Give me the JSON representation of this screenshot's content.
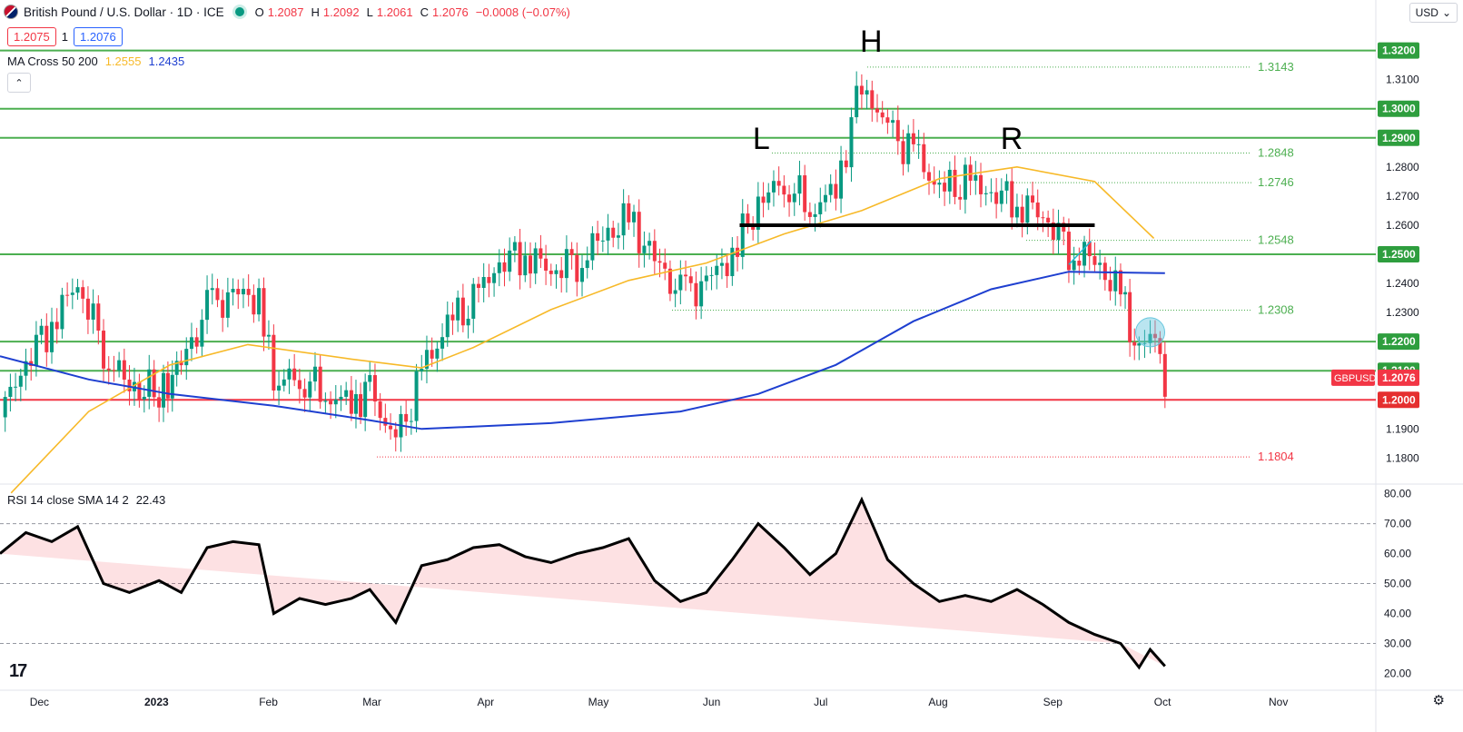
{
  "header": {
    "title": "British Pound / U.S. Dollar · 1D · ICE",
    "ohlc": [
      {
        "k": "O",
        "v": "1.2087"
      },
      {
        "k": "H",
        "v": "1.2092"
      },
      {
        "k": "L",
        "v": "1.2061"
      },
      {
        "k": "C",
        "v": "1.2076"
      },
      {
        "k": "",
        "v": "−0.0008 (−0.07%)"
      }
    ]
  },
  "quote": {
    "bid": "1.2075",
    "spread": "1",
    "ask": "1.2076"
  },
  "ma_legend": {
    "label": "MA Cross 50 200",
    "ma50": "1.2555",
    "ma200": "1.2435"
  },
  "currency_button": {
    "label": "USD",
    "icon": "chevron-down-icon"
  },
  "rsi_legend": {
    "label": "RSI 14 close SMA 14 2",
    "value": "22.43"
  },
  "colors": {
    "up": "#089981",
    "down": "#f23645",
    "ma50": "#f7b928",
    "ma200": "#1e3fd0",
    "level": "#4caf50",
    "support": "#f23645",
    "rsi": "#000000",
    "circle": "#66c6de"
  },
  "chart_data": [
    {
      "type": "candlestick",
      "title": "British Pound / U.S. Dollar · 1D · ICE",
      "ylim": [
        1.172,
        1.328
      ],
      "x_tick_labels": [
        "Dec",
        "2023",
        "Feb",
        "Mar",
        "Apr",
        "May",
        "Jun",
        "Jul",
        "Aug",
        "Sep",
        "Oct",
        "Nov"
      ],
      "y_tick_labels": [
        "1.3100",
        "1.2800",
        "1.2700",
        "1.2600",
        "1.2400",
        "1.2300",
        "1.1900",
        "1.1800"
      ],
      "key_levels": [
        {
          "label": "1.3200",
          "value": 1.32,
          "color": "#4caf50"
        },
        {
          "label": "1.3000",
          "value": 1.3,
          "color": "#4caf50"
        },
        {
          "label": "1.2900",
          "value": 1.29,
          "color": "#4caf50"
        },
        {
          "label": "1.2500",
          "value": 1.25,
          "color": "#4caf50"
        },
        {
          "label": "1.2200",
          "value": 1.22,
          "color": "#4caf50"
        },
        {
          "label": "1.2100",
          "value": 1.21,
          "color": "#4caf50"
        },
        {
          "label": "1.2000",
          "value": 1.2,
          "color": "#f23645"
        }
      ],
      "fib_levels": [
        {
          "label": "1.3143",
          "value": 1.3143,
          "color": "#4caf50"
        },
        {
          "label": "1.2848",
          "value": 1.2848,
          "color": "#4caf50"
        },
        {
          "label": "1.2746",
          "value": 1.2746,
          "color": "#4caf50"
        },
        {
          "label": "1.2548",
          "value": 1.2548,
          "color": "#4caf50"
        },
        {
          "label": "1.2308",
          "value": 1.2308,
          "color": "#4caf50"
        },
        {
          "label": "1.1804",
          "value": 1.1804,
          "color": "#f23645"
        }
      ],
      "last_price": {
        "symbol": "GBPUSD",
        "label": "1.2076",
        "value": 1.2076
      },
      "neckline": 1.26,
      "pattern_labels": [
        "L",
        "H",
        "R"
      ],
      "close_path": [
        [
          "2022-11-21",
          1.194
        ],
        [
          "2022-11-28",
          1.214
        ],
        [
          "2022-12-05",
          1.226
        ],
        [
          "2022-12-12",
          1.241
        ],
        [
          "2022-12-19",
          1.218
        ],
        [
          "2022-12-26",
          1.204
        ],
        [
          "2023-01-03",
          1.203
        ],
        [
          "2023-01-09",
          1.212
        ],
        [
          "2023-01-16",
          1.231
        ],
        [
          "2023-01-23",
          1.236
        ],
        [
          "2023-01-30",
          1.235
        ],
        [
          "2023-02-03",
          1.205
        ],
        [
          "2023-02-10",
          1.209
        ],
        [
          "2023-02-17",
          1.202
        ],
        [
          "2023-02-24",
          1.199
        ],
        [
          "2023-03-01",
          1.204
        ],
        [
          "2023-03-08",
          1.184
        ],
        [
          "2023-03-15",
          1.209
        ],
        [
          "2023-03-22",
          1.226
        ],
        [
          "2023-03-29",
          1.233
        ],
        [
          "2023-04-05",
          1.248
        ],
        [
          "2023-04-12",
          1.25
        ],
        [
          "2023-04-19",
          1.245
        ],
        [
          "2023-04-26",
          1.248
        ],
        [
          "2023-05-03",
          1.256
        ],
        [
          "2023-05-10",
          1.262
        ],
        [
          "2023-05-17",
          1.248
        ],
        [
          "2023-05-24",
          1.236
        ],
        [
          "2023-05-31",
          1.24
        ],
        [
          "2023-06-07",
          1.25
        ],
        [
          "2023-06-14",
          1.267
        ],
        [
          "2023-06-21",
          1.276
        ],
        [
          "2023-06-28",
          1.266
        ],
        [
          "2023-07-05",
          1.272
        ],
        [
          "2023-07-12",
          1.31
        ],
        [
          "2023-07-19",
          1.292
        ],
        [
          "2023-07-26",
          1.285
        ],
        [
          "2023-08-02",
          1.272
        ],
        [
          "2023-08-09",
          1.274
        ],
        [
          "2023-08-16",
          1.272
        ],
        [
          "2023-08-23",
          1.268
        ],
        [
          "2023-08-30",
          1.264
        ],
        [
          "2023-09-06",
          1.252
        ],
        [
          "2023-09-13",
          1.248
        ],
        [
          "2023-09-20",
          1.236
        ],
        [
          "2023-09-25",
          1.215
        ],
        [
          "2023-09-28",
          1.221
        ],
        [
          "2023-10-02",
          1.2076
        ]
      ],
      "ma50_path": [
        [
          "2022-11-24",
          1.168
        ],
        [
          "2022-12-15",
          1.196
        ],
        [
          "2023-01-06",
          1.212
        ],
        [
          "2023-01-27",
          1.219
        ],
        [
          "2023-02-24",
          1.214
        ],
        [
          "2023-03-15",
          1.211
        ],
        [
          "2023-03-29",
          1.218
        ],
        [
          "2023-04-19",
          1.231
        ],
        [
          "2023-05-10",
          1.241
        ],
        [
          "2023-05-31",
          1.247
        ],
        [
          "2023-06-21",
          1.257
        ],
        [
          "2023-07-12",
          1.265
        ],
        [
          "2023-08-02",
          1.276
        ],
        [
          "2023-08-23",
          1.28
        ],
        [
          "2023-09-13",
          1.275
        ],
        [
          "2023-09-29",
          1.2555
        ]
      ],
      "ma200_path": [
        [
          "2022-11-21",
          1.215
        ],
        [
          "2022-12-15",
          1.207
        ],
        [
          "2023-01-06",
          1.202
        ],
        [
          "2023-02-03",
          1.198
        ],
        [
          "2023-03-01",
          1.193
        ],
        [
          "2023-03-15",
          1.19
        ],
        [
          "2023-04-19",
          1.192
        ],
        [
          "2023-05-24",
          1.196
        ],
        [
          "2023-06-14",
          1.202
        ],
        [
          "2023-07-05",
          1.212
        ],
        [
          "2023-07-26",
          1.227
        ],
        [
          "2023-08-16",
          1.238
        ],
        [
          "2023-09-06",
          1.244
        ],
        [
          "2023-10-02",
          1.2435
        ]
      ]
    },
    {
      "type": "line",
      "title": "RSI 14 close SMA 14 2",
      "ylim": [
        15,
        82
      ],
      "y_tick_labels": [
        "80.00",
        "70.00",
        "60.00",
        "50.00",
        "40.00",
        "30.00",
        "20.00"
      ],
      "levels": [
        70,
        50,
        30
      ],
      "series": [
        {
          "values": [
            [
              "2022-11-21",
              60
            ],
            [
              "2022-11-28",
              67
            ],
            [
              "2022-12-05",
              64
            ],
            [
              "2022-12-12",
              69
            ],
            [
              "2022-12-19",
              50
            ],
            [
              "2022-12-26",
              47
            ],
            [
              "2023-01-03",
              51
            ],
            [
              "2023-01-09",
              47
            ],
            [
              "2023-01-16",
              62
            ],
            [
              "2023-01-23",
              64
            ],
            [
              "2023-01-30",
              63
            ],
            [
              "2023-02-03",
              40
            ],
            [
              "2023-02-10",
              45
            ],
            [
              "2023-02-17",
              43
            ],
            [
              "2023-02-24",
              45
            ],
            [
              "2023-03-01",
              48
            ],
            [
              "2023-03-08",
              37
            ],
            [
              "2023-03-15",
              56
            ],
            [
              "2023-03-22",
              58
            ],
            [
              "2023-03-29",
              62
            ],
            [
              "2023-04-05",
              63
            ],
            [
              "2023-04-12",
              59
            ],
            [
              "2023-04-19",
              57
            ],
            [
              "2023-04-26",
              60
            ],
            [
              "2023-05-03",
              62
            ],
            [
              "2023-05-10",
              65
            ],
            [
              "2023-05-17",
              51
            ],
            [
              "2023-05-24",
              44
            ],
            [
              "2023-05-31",
              47
            ],
            [
              "2023-06-07",
              58
            ],
            [
              "2023-06-14",
              70
            ],
            [
              "2023-06-21",
              62
            ],
            [
              "2023-06-28",
              53
            ],
            [
              "2023-07-05",
              60
            ],
            [
              "2023-07-12",
              78
            ],
            [
              "2023-07-19",
              58
            ],
            [
              "2023-07-26",
              50
            ],
            [
              "2023-08-02",
              44
            ],
            [
              "2023-08-09",
              46
            ],
            [
              "2023-08-16",
              44
            ],
            [
              "2023-08-23",
              48
            ],
            [
              "2023-08-30",
              43
            ],
            [
              "2023-09-06",
              37
            ],
            [
              "2023-09-13",
              33
            ],
            [
              "2023-09-20",
              30
            ],
            [
              "2023-09-25",
              22
            ],
            [
              "2023-09-28",
              28
            ],
            [
              "2023-10-02",
              22.43
            ]
          ]
        }
      ]
    }
  ]
}
